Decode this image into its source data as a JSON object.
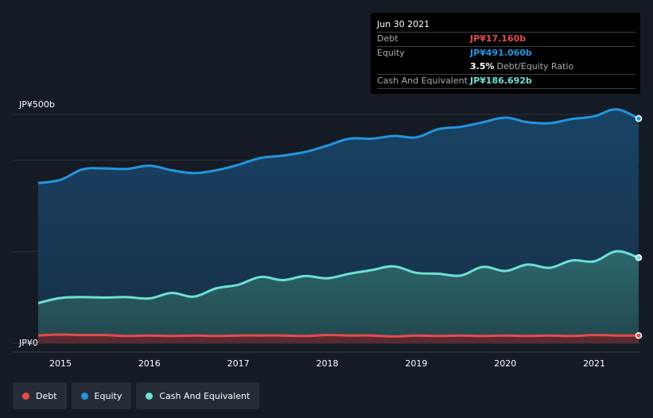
{
  "tooltip": {
    "date": "Jun 30 2021",
    "debt_label": "Debt",
    "debt_value": "JP¥17.160b",
    "equity_label": "Equity",
    "equity_value": "JP¥491.060b",
    "ratio_value": "3.5%",
    "ratio_label": "Debt/Equity Ratio",
    "cash_label": "Cash And Equivalent",
    "cash_value": "JP¥186.692b"
  },
  "legend": [
    {
      "label": "Debt",
      "color": "#e64b4b"
    },
    {
      "label": "Equity",
      "color": "#2394df"
    },
    {
      "label": "Cash And Equivalent",
      "color": "#6ce0d5"
    }
  ],
  "chart_data": {
    "type": "area",
    "y_unit": "JP¥ billions",
    "ytick_labels": [
      "JP¥500b",
      "JP¥0"
    ],
    "ylim": [
      0,
      500
    ],
    "xlim": [
      2014.75,
      2021.5
    ],
    "xtick_labels": [
      "2015",
      "2016",
      "2017",
      "2018",
      "2019",
      "2020",
      "2021"
    ],
    "grid": true,
    "series": [
      {
        "name": "Equity",
        "color": "#2394df",
        "x": [
          2014.75,
          2015.0,
          2015.25,
          2015.5,
          2015.75,
          2016.0,
          2016.25,
          2016.5,
          2016.75,
          2017.0,
          2017.25,
          2017.5,
          2017.75,
          2018.0,
          2018.25,
          2018.5,
          2018.75,
          2019.0,
          2019.25,
          2019.5,
          2019.75,
          2020.0,
          2020.25,
          2020.5,
          2020.75,
          2021.0,
          2021.25,
          2021.5
        ],
        "values": [
          350,
          357,
          380,
          382,
          381,
          388,
          378,
          372,
          378,
          390,
          405,
          410,
          418,
          432,
          447,
          447,
          453,
          450,
          468,
          473,
          483,
          493,
          483,
          481,
          490,
          496,
          511,
          491
        ]
      },
      {
        "name": "Cash And Equivalent",
        "color": "#6ce0d5",
        "x": [
          2014.75,
          2015.0,
          2015.25,
          2015.5,
          2015.75,
          2016.0,
          2016.25,
          2016.5,
          2016.75,
          2017.0,
          2017.25,
          2017.5,
          2017.75,
          2018.0,
          2018.25,
          2018.5,
          2018.75,
          2019.0,
          2019.25,
          2019.5,
          2019.75,
          2020.0,
          2020.25,
          2020.5,
          2020.75,
          2021.0,
          2021.25,
          2021.5
        ],
        "values": [
          88,
          99,
          101,
          100,
          101,
          98,
          110,
          102,
          120,
          128,
          145,
          138,
          147,
          142,
          152,
          160,
          168,
          154,
          152,
          148,
          167,
          158,
          172,
          165,
          181,
          179,
          201,
          187
        ]
      },
      {
        "name": "Debt",
        "color": "#e64b4b",
        "x": [
          2014.75,
          2015.0,
          2015.25,
          2015.5,
          2015.75,
          2016.0,
          2016.25,
          2016.5,
          2016.75,
          2017.0,
          2017.25,
          2017.5,
          2017.75,
          2018.0,
          2018.25,
          2018.5,
          2018.75,
          2019.0,
          2019.25,
          2019.5,
          2019.75,
          2020.0,
          2020.25,
          2020.5,
          2020.75,
          2021.0,
          2021.25,
          2021.5
        ],
        "values": [
          17,
          19,
          18,
          18,
          16,
          17,
          16,
          17,
          16,
          17,
          17,
          17,
          16,
          18,
          17,
          17,
          15,
          17,
          16,
          17,
          16,
          17,
          16,
          17,
          16,
          18,
          17,
          17
        ]
      }
    ]
  }
}
